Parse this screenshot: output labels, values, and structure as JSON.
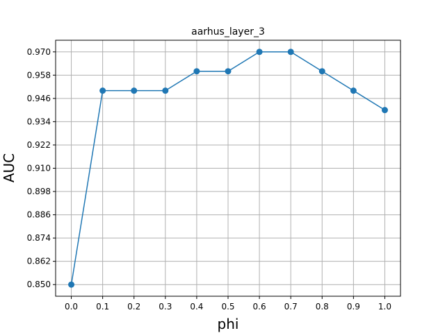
{
  "chart_data": {
    "type": "line",
    "title": "aarhus_layer_3",
    "xlabel": "phi",
    "ylabel": "AUC",
    "x": [
      0.0,
      0.1,
      0.2,
      0.3,
      0.4,
      0.5,
      0.6,
      0.7,
      0.8,
      0.9,
      1.0
    ],
    "series": [
      {
        "values": [
          0.85,
          0.95,
          0.95,
          0.95,
          0.96,
          0.96,
          0.97,
          0.97,
          0.96,
          0.95,
          0.94
        ],
        "color": "#1f77b4"
      }
    ],
    "xlim": [
      -0.05,
      1.05
    ],
    "ylim": [
      0.844,
      0.976
    ],
    "xticks": [
      "0.0",
      "0.1",
      "0.2",
      "0.3",
      "0.4",
      "0.5",
      "0.6",
      "0.7",
      "0.8",
      "0.9",
      "1.0"
    ],
    "yticks": [
      "0.850",
      "0.862",
      "0.874",
      "0.886",
      "0.898",
      "0.910",
      "0.922",
      "0.934",
      "0.946",
      "0.958",
      "0.970"
    ],
    "grid": true,
    "marker": "circle"
  }
}
